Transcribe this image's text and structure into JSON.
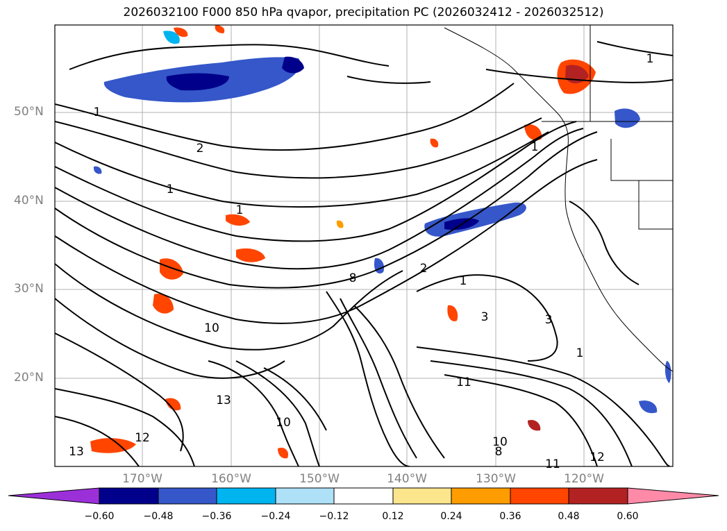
{
  "title": "2026032100 F000 850 hPa qvapor, precipitation PC (2026032412 - 2026032512)",
  "map": {
    "lat_labels": [
      "50°N",
      "40°N",
      "30°N",
      "20°N"
    ],
    "lon_labels": [
      "170°W",
      "160°W",
      "150°W",
      "140°W",
      "130°W",
      "120°W"
    ],
    "contour_labels": [
      "1",
      "2",
      "1",
      "1",
      "1",
      "1",
      "2",
      "3",
      "1",
      "3",
      "1",
      "10",
      "8",
      "13",
      "12",
      "13",
      "10",
      "11",
      "10",
      "11",
      "12",
      "8"
    ]
  },
  "colorbar": {
    "tick_labels": [
      "−0.60",
      "−0.48",
      "−0.36",
      "−0.24",
      "−0.12",
      "0.12",
      "0.24",
      "0.36",
      "0.48",
      "0.60"
    ],
    "colors": [
      "#9b30d9",
      "#00008b",
      "#3557c9",
      "#00b4f0",
      "#aee0f8",
      "#ffffff",
      "#fbe58d",
      "#ff9d00",
      "#ff4500",
      "#b22222",
      "#ff8aa8"
    ]
  }
}
